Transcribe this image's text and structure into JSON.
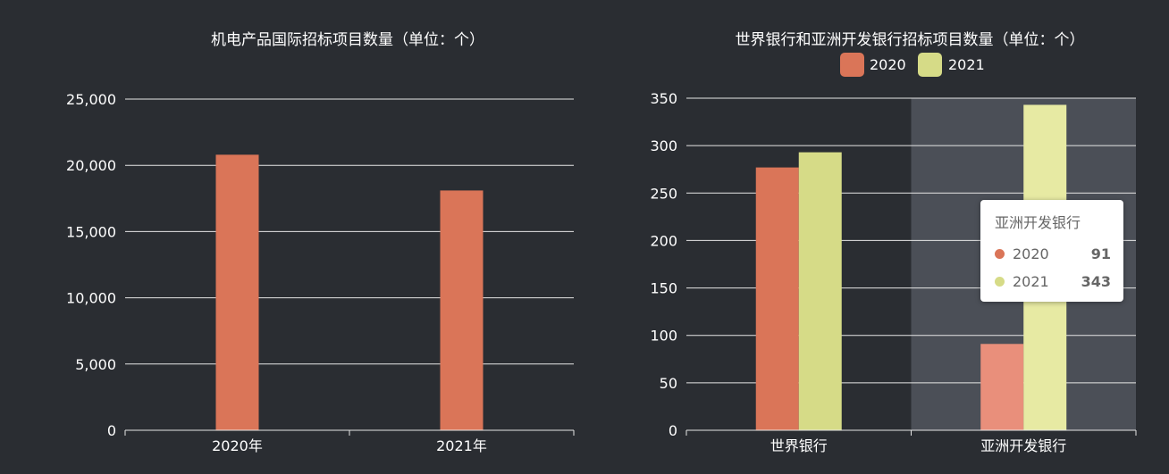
{
  "colors": {
    "background": "#2a2d32",
    "c2020": "#da7558",
    "c2021": "#d6db87",
    "c2020_highlight": "#e98f7b",
    "c2021_highlight": "#e7eaa3",
    "hover_band": "#4b4f57",
    "grid": "#e6e6e6",
    "text": "#ffffff"
  },
  "chart_data": [
    {
      "type": "bar",
      "title": "机电产品国际招标项目数量（单位：个）",
      "categories": [
        "2020年",
        "2021年"
      ],
      "series": [
        {
          "values": [
            20800,
            18100
          ]
        }
      ],
      "ylim": [
        0,
        25000
      ],
      "yticks": [
        "0",
        "5,000",
        "10,000",
        "15,000",
        "20,000",
        "25,000"
      ],
      "grid": true
    },
    {
      "type": "bar",
      "title": "世界银行和亚洲开发银行招标项目数量（单位：个）",
      "categories": [
        "世界银行",
        "亚洲开发银行"
      ],
      "series": [
        {
          "name": "2020",
          "values": [
            277,
            91
          ]
        },
        {
          "name": "2021",
          "values": [
            293,
            343
          ]
        }
      ],
      "ylim": [
        0,
        350
      ],
      "yticks": [
        "0",
        "50",
        "100",
        "150",
        "200",
        "250",
        "300",
        "350"
      ],
      "grid": true,
      "legend": "top-center",
      "tooltip": {
        "title": "亚洲开发银行",
        "rows": [
          {
            "name": "2020",
            "value": "91"
          },
          {
            "name": "2021",
            "value": "343"
          }
        ]
      }
    }
  ]
}
